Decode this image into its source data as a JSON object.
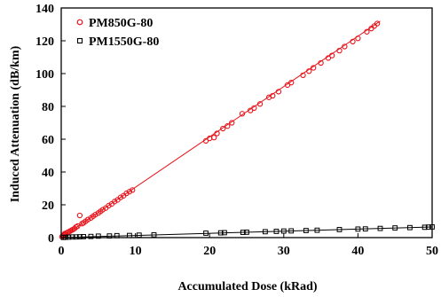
{
  "chart_data": {
    "type": "scatter",
    "title": "",
    "xlabel": "Accumulated Dose (kRad)",
    "ylabel": "Induced Attenuation (dB/km)",
    "xlim": [
      0,
      50
    ],
    "ylim": [
      0,
      140
    ],
    "xticks": [
      "0",
      "10",
      "20",
      "30",
      "40",
      "50"
    ],
    "yticks": [
      "0",
      "20",
      "40",
      "60",
      "80",
      "100",
      "120",
      "140"
    ],
    "grid": false,
    "legend_position": "top-left",
    "series": [
      {
        "name": "PM850G-80",
        "color": "#e8141b",
        "marker": "circle",
        "fit_line": [
          [
            0,
            0
          ],
          [
            43,
            132
          ]
        ],
        "x": [
          0.1,
          0.2,
          0.3,
          0.4,
          0.5,
          0.6,
          0.8,
          1.0,
          1.2,
          1.4,
          1.6,
          1.8,
          2.0,
          2.2,
          2.5,
          2.8,
          3.0,
          3.3,
          3.6,
          4.0,
          4.3,
          4.6,
          5.0,
          5.3,
          5.6,
          6.0,
          6.4,
          6.8,
          7.2,
          7.6,
          8.0,
          8.4,
          8.8,
          9.2,
          9.6,
          19.5,
          20.0,
          20.6,
          21.0,
          21.8,
          22.4,
          23.0,
          24.4,
          25.5,
          26.0,
          26.8,
          28.0,
          28.5,
          29.3,
          30.5,
          31.0,
          32.6,
          33.4,
          34.0,
          35.0,
          36.0,
          36.5,
          37.5,
          38.2,
          39.3,
          40.0,
          41.2,
          41.8,
          42.2,
          42.6
        ],
        "y": [
          0.5,
          1.0,
          1.5,
          2.0,
          2.5,
          2.0,
          3.0,
          3.5,
          4.0,
          4.5,
          5.0,
          5.5,
          6.5,
          7.0,
          13.5,
          8.5,
          9.0,
          10.0,
          11.0,
          12.0,
          13.0,
          14.0,
          15.0,
          16.0,
          17.0,
          18.0,
          19.5,
          20.5,
          22.0,
          23.0,
          24.5,
          25.5,
          27.0,
          28.0,
          29.0,
          59.0,
          60.5,
          61.0,
          63.5,
          66.5,
          68.0,
          70.0,
          75.5,
          77.5,
          79.0,
          81.5,
          85.5,
          86.5,
          89.0,
          93.0,
          94.5,
          99.0,
          101.5,
          103.5,
          106.5,
          109.5,
          111.0,
          114.0,
          116.5,
          119.5,
          121.5,
          125.5,
          127.5,
          129.0,
          130.5
        ]
      },
      {
        "name": "PM1550G-80",
        "color": "#000000",
        "marker": "square",
        "fit_line": [
          [
            0,
            0
          ],
          [
            50,
            6.5
          ]
        ],
        "x": [
          0.3,
          0.6,
          1.0,
          1.5,
          2.0,
          2.5,
          3.0,
          4.0,
          5.0,
          6.5,
          7.5,
          9.2,
          10.5,
          12.5,
          19.5,
          21.5,
          22.0,
          24.5,
          25.0,
          27.5,
          29.0,
          30.0,
          31.0,
          33.0,
          34.5,
          37.5,
          40.0,
          41.0,
          43.0,
          45.0,
          47.0,
          49.0,
          49.5,
          50.0
        ],
        "y": [
          0.1,
          0.2,
          0.3,
          0.4,
          0.4,
          0.5,
          0.6,
          0.7,
          0.9,
          1.0,
          1.2,
          1.3,
          1.5,
          1.7,
          2.7,
          2.9,
          3.0,
          3.2,
          3.3,
          3.6,
          3.8,
          4.0,
          4.1,
          4.3,
          4.5,
          4.9,
          5.2,
          5.3,
          5.6,
          5.9,
          6.1,
          6.3,
          6.4,
          6.5
        ]
      }
    ]
  }
}
